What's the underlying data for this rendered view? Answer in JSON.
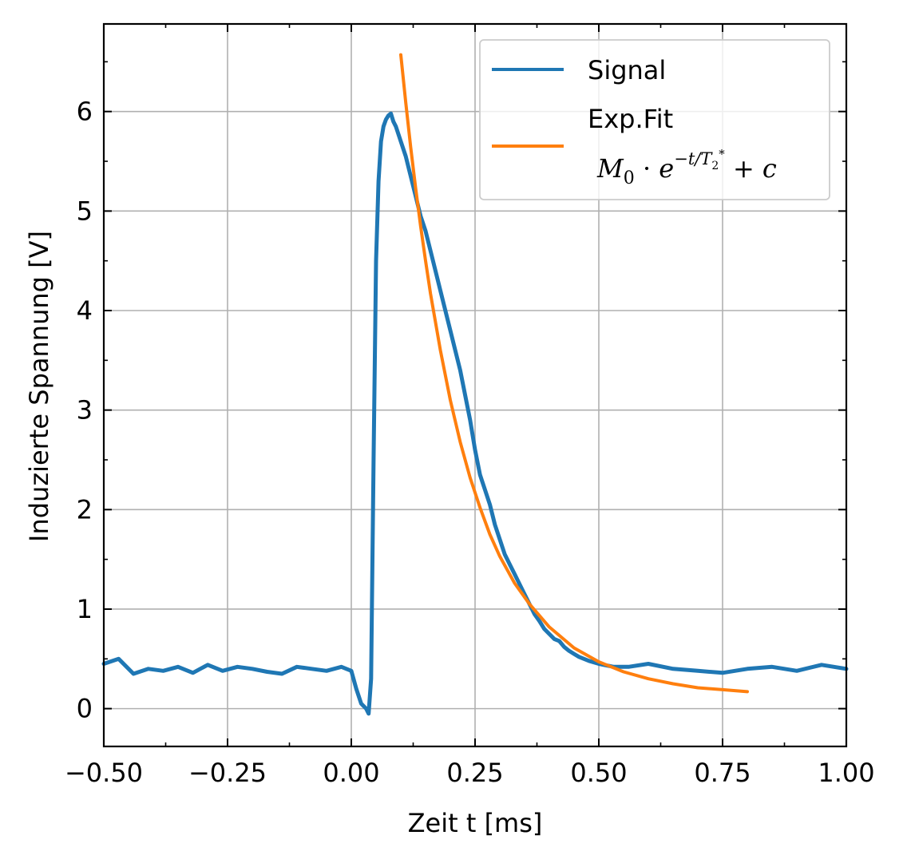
{
  "chart_data": {
    "type": "line",
    "xlabel": "Zeit t [ms]",
    "ylabel": "Induzierte Spannung [V]",
    "xlim": [
      -0.5,
      1.0
    ],
    "ylim": [
      -0.38,
      6.88
    ],
    "x_ticks": [
      -0.5,
      -0.25,
      0.0,
      0.25,
      0.5,
      0.75,
      1.0
    ],
    "x_tick_labels": [
      "−0.50",
      "−0.25",
      "0.00",
      "0.25",
      "0.50",
      "0.75",
      "1.00"
    ],
    "x_minor_ticks": [
      -0.375,
      -0.125,
      0.125,
      0.375,
      0.625,
      0.875
    ],
    "y_ticks": [
      0,
      1,
      2,
      3,
      4,
      5,
      6
    ],
    "y_tick_labels": [
      "0",
      "1",
      "2",
      "3",
      "4",
      "5",
      "6"
    ],
    "y_minor_ticks": [
      0.5,
      1.5,
      2.5,
      3.5,
      4.5,
      5.5,
      6.5
    ],
    "grid": true,
    "legend_position": "top-right",
    "series": [
      {
        "name": "Signal",
        "color": "#1f77b4",
        "x": [
          -0.5,
          -0.47,
          -0.44,
          -0.41,
          -0.38,
          -0.35,
          -0.32,
          -0.29,
          -0.26,
          -0.23,
          -0.2,
          -0.17,
          -0.14,
          -0.11,
          -0.08,
          -0.05,
          -0.02,
          0.0,
          0.01,
          0.02,
          0.03,
          0.035,
          0.04,
          0.045,
          0.05,
          0.055,
          0.06,
          0.065,
          0.07,
          0.075,
          0.08,
          0.085,
          0.09,
          0.1,
          0.11,
          0.12,
          0.13,
          0.14,
          0.15,
          0.16,
          0.17,
          0.18,
          0.19,
          0.2,
          0.21,
          0.22,
          0.23,
          0.24,
          0.25,
          0.26,
          0.27,
          0.28,
          0.29,
          0.3,
          0.31,
          0.32,
          0.33,
          0.34,
          0.35,
          0.36,
          0.37,
          0.38,
          0.39,
          0.4,
          0.41,
          0.42,
          0.43,
          0.44,
          0.45,
          0.46,
          0.47,
          0.48,
          0.5,
          0.53,
          0.56,
          0.6,
          0.65,
          0.7,
          0.75,
          0.8,
          0.85,
          0.9,
          0.95,
          1.0
        ],
        "y": [
          0.45,
          0.5,
          0.35,
          0.4,
          0.38,
          0.42,
          0.36,
          0.44,
          0.38,
          0.42,
          0.4,
          0.37,
          0.35,
          0.42,
          0.4,
          0.38,
          0.42,
          0.38,
          0.2,
          0.05,
          0.0,
          -0.05,
          0.3,
          2.5,
          4.5,
          5.3,
          5.7,
          5.85,
          5.92,
          5.96,
          5.98,
          5.9,
          5.85,
          5.7,
          5.55,
          5.35,
          5.15,
          4.95,
          4.8,
          4.6,
          4.4,
          4.2,
          4.0,
          3.8,
          3.6,
          3.4,
          3.15,
          2.9,
          2.6,
          2.35,
          2.2,
          2.05,
          1.85,
          1.7,
          1.55,
          1.45,
          1.35,
          1.25,
          1.15,
          1.05,
          0.95,
          0.88,
          0.8,
          0.75,
          0.7,
          0.68,
          0.62,
          0.58,
          0.55,
          0.52,
          0.5,
          0.48,
          0.45,
          0.42,
          0.42,
          0.45,
          0.4,
          0.38,
          0.36,
          0.4,
          0.42,
          0.38,
          0.44,
          0.4
        ]
      },
      {
        "name": "Exp.Fit",
        "name_math": "M₀ · e^(−t/T₂*) + c",
        "color": "#ff7f0e",
        "x": [
          0.1,
          0.11,
          0.12,
          0.13,
          0.14,
          0.15,
          0.16,
          0.18,
          0.2,
          0.22,
          0.24,
          0.26,
          0.28,
          0.3,
          0.33,
          0.36,
          0.4,
          0.45,
          0.5,
          0.55,
          0.6,
          0.65,
          0.7,
          0.75,
          0.8
        ],
        "y": [
          6.57,
          6.09,
          5.64,
          5.23,
          4.85,
          4.5,
          4.17,
          3.6,
          3.1,
          2.68,
          2.32,
          2.02,
          1.75,
          1.53,
          1.26,
          1.05,
          0.82,
          0.61,
          0.47,
          0.37,
          0.3,
          0.25,
          0.21,
          0.19,
          0.17
        ]
      }
    ]
  }
}
